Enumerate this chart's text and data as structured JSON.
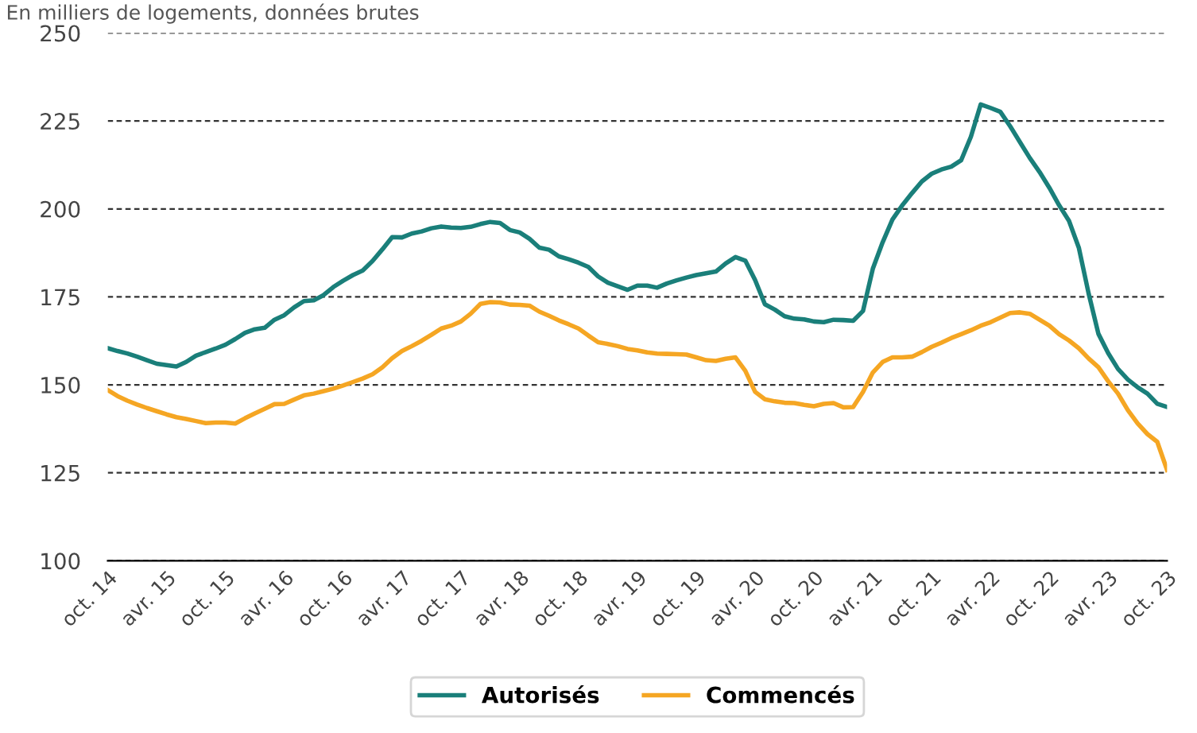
{
  "chart_data": {
    "type": "line",
    "title": "En milliers de logements, données brutes",
    "categories": [
      "oct. 14",
      null,
      null,
      null,
      null,
      null,
      "avr. 15",
      null,
      null,
      null,
      null,
      null,
      "oct. 15",
      null,
      null,
      null,
      null,
      null,
      "avr. 16",
      null,
      null,
      null,
      null,
      null,
      "oct. 16",
      null,
      null,
      null,
      null,
      null,
      "avr. 17",
      null,
      null,
      null,
      null,
      null,
      "oct. 17",
      null,
      null,
      null,
      null,
      null,
      "avr. 18",
      null,
      null,
      null,
      null,
      null,
      "oct. 18",
      null,
      null,
      null,
      null,
      null,
      "avr. 19",
      null,
      null,
      null,
      null,
      null,
      "oct. 19",
      null,
      null,
      null,
      null,
      null,
      "avr. 20",
      null,
      null,
      null,
      null,
      null,
      "oct. 20",
      null,
      null,
      null,
      null,
      null,
      "avr. 21",
      null,
      null,
      null,
      null,
      null,
      "oct. 21",
      null,
      null,
      null,
      null,
      null,
      "avr. 22",
      null,
      null,
      null,
      null,
      null,
      "oct. 22",
      null,
      null,
      null,
      null,
      null,
      "avr. 23",
      null,
      null,
      null,
      null,
      null,
      "oct. 23"
    ],
    "series": [
      {
        "name": "Autorisés",
        "color": "#1a7f7a",
        "values": [
          160.4,
          159.6,
          158.9,
          158.0,
          157,
          156,
          155.6,
          155.2,
          156.5,
          158.3,
          159.3,
          160.3,
          161.4,
          163,
          164.8,
          165.8,
          166.2,
          168.5,
          169.8,
          172,
          173.8,
          174,
          175.5,
          177.8,
          179.6,
          181.2,
          182.5,
          185.2,
          188.5,
          192,
          191.9,
          193,
          193.6,
          194.5,
          195,
          194.7,
          194.6,
          194.9,
          195.7,
          196.3,
          196,
          194,
          193.3,
          191.5,
          189,
          188.4,
          186.5,
          185.7,
          184.7,
          183.5,
          180.8,
          179,
          178,
          177,
          178.2,
          178.2,
          177.6,
          178.8,
          179.7,
          180.5,
          181.2,
          181.7,
          182.2,
          184.5,
          186.3,
          185.3,
          179.8,
          172.9,
          171.4,
          169.5,
          168.8,
          168.6,
          168,
          167.8,
          168.5,
          168.4,
          168.2,
          171,
          183,
          190.5,
          197,
          201,
          204.5,
          207.8,
          210,
          211.2,
          212,
          213.8,
          220.5,
          229.7,
          228.7,
          227.6,
          223.5,
          219,
          214.5,
          210.5,
          206,
          201,
          196.6,
          189,
          176,
          164.5,
          159,
          154.5,
          151.5,
          149.3,
          147.5,
          144.6,
          143.7
        ]
      },
      {
        "name": "Commencés",
        "color": "#f5a623",
        "values": [
          148.5,
          146.8,
          145.5,
          144.4,
          143.4,
          142.5,
          141.6,
          140.8,
          140.3,
          139.7,
          139.1,
          139.3,
          139.3,
          139,
          140.5,
          141.9,
          143.2,
          144.5,
          144.6,
          145.8,
          147,
          147.5,
          148.2,
          148.9,
          149.8,
          150.8,
          151.8,
          153,
          155,
          157.6,
          159.6,
          161,
          162.5,
          164.2,
          166,
          166.8,
          168,
          170.2,
          173,
          173.5,
          173.4,
          172.8,
          172.7,
          172.5,
          170.8,
          169.6,
          168.3,
          167.2,
          166,
          164,
          162.1,
          161.6,
          161,
          160.2,
          159.8,
          159.2,
          158.9,
          158.8,
          158.7,
          158.6,
          157.8,
          157,
          156.8,
          157.4,
          157.8,
          154,
          148,
          145.9,
          145.3,
          144.9,
          144.8,
          144.3,
          143.9,
          144.6,
          144.8,
          143.6,
          143.7,
          148,
          153.5,
          156.5,
          157.8,
          157.8,
          158,
          159.3,
          160.8,
          162,
          163.3,
          164.4,
          165.5,
          166.8,
          167.8,
          169.1,
          170.4,
          170.6,
          170.2,
          168.5,
          166.8,
          164.4,
          162.6,
          160.4,
          157.5,
          155,
          151,
          147.5,
          142.8,
          139,
          136,
          133.8,
          125.8
        ]
      }
    ],
    "ylim": [
      100,
      250
    ],
    "yticks": [
      100,
      125,
      150,
      175,
      200,
      225,
      250
    ],
    "grid": "y",
    "legend": "bottom",
    "marker": "none",
    "line_style": "solid"
  }
}
